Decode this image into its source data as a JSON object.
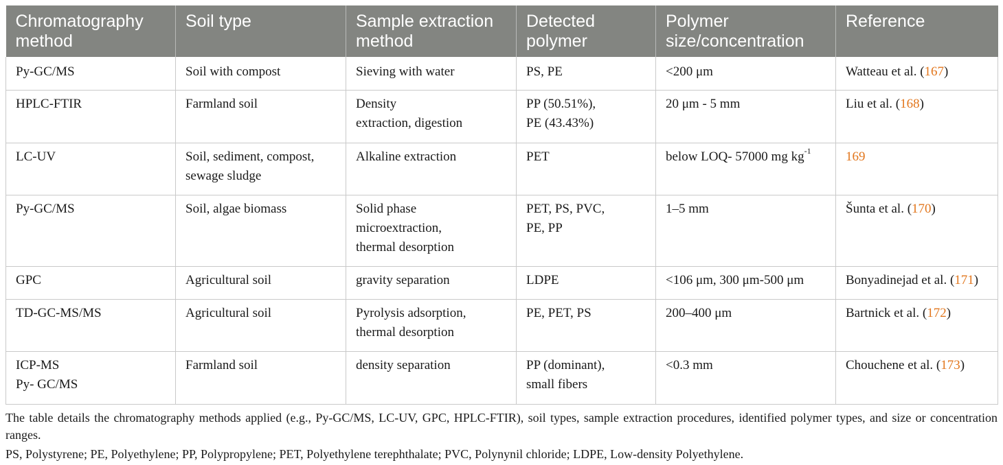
{
  "table": {
    "headers": [
      [
        "Chromatography",
        "method"
      ],
      [
        "Soil type"
      ],
      [
        "Sample extraction",
        "method"
      ],
      [
        "Detected",
        "polymer"
      ],
      [
        "Polymer",
        "size/concentration"
      ],
      [
        "Reference"
      ]
    ],
    "rows": [
      {
        "method": [
          "Py-GC/MS"
        ],
        "soil": [
          "Soil with compost"
        ],
        "extraction": [
          "Sieving with water"
        ],
        "polymer": [
          "PS, PE"
        ],
        "size": {
          "text": "<200 μm",
          "sup": ""
        },
        "reference": {
          "pre": "Watteau et al. (",
          "num": "167",
          "post": ")"
        }
      },
      {
        "method": [
          "HPLC-FTIR"
        ],
        "soil": [
          "Farmland soil"
        ],
        "extraction": [
          "Density",
          "extraction, digestion"
        ],
        "polymer": [
          "PP (50.51%),",
          "PE (43.43%)"
        ],
        "size": {
          "text": "20 μm - 5 mm",
          "sup": ""
        },
        "reference": {
          "pre": "Liu et al. (",
          "num": "168",
          "post": ")"
        }
      },
      {
        "method": [
          "LC-UV"
        ],
        "soil": [
          "Soil, sediment, compost,",
          "sewage sludge"
        ],
        "extraction": [
          "Alkaline extraction"
        ],
        "polymer": [
          "PET"
        ],
        "size": {
          "text": "below LOQ- 57000 mg kg",
          "sup": "-1"
        },
        "reference": {
          "pre": "",
          "num": "169",
          "post": ""
        }
      },
      {
        "method": [
          "Py-GC/MS"
        ],
        "soil": [
          "Soil, algae biomass"
        ],
        "extraction": [
          "Solid phase",
          "microextraction,",
          "thermal desorption"
        ],
        "polymer": [
          "PET, PS, PVC,",
          "PE, PP"
        ],
        "size": {
          "text": "1–5 mm",
          "sup": ""
        },
        "reference": {
          "pre": "Šunta et al. (",
          "num": "170",
          "post": ")"
        }
      },
      {
        "method": [
          "GPC"
        ],
        "soil": [
          "Agricultural soil"
        ],
        "extraction": [
          "gravity separation"
        ],
        "polymer": [
          "LDPE"
        ],
        "size": {
          "text": "<106 μm, 300 μm-500 μm",
          "sup": ""
        },
        "reference": {
          "pre": "Bonyadinejad et al. (",
          "num": "171",
          "post": ")"
        }
      },
      {
        "method": [
          "TD-GC-MS/MS"
        ],
        "soil": [
          "Agricultural soil"
        ],
        "extraction": [
          "Pyrolysis adsorption,",
          "thermal desorption"
        ],
        "polymer": [
          "PE, PET, PS"
        ],
        "size": {
          "text": "200–400 μm",
          "sup": ""
        },
        "reference": {
          "pre": "Bartnick et al. (",
          "num": "172",
          "post": ")"
        }
      },
      {
        "method": [
          "ICP-MS",
          "Py- GC/MS"
        ],
        "soil": [
          "Farmland soil"
        ],
        "extraction": [
          "density separation"
        ],
        "polymer": [
          "PP (dominant),",
          "small fibers"
        ],
        "size": {
          "text": "<0.3 mm",
          "sup": ""
        },
        "reference": {
          "pre": "Chouchene et al. (",
          "num": "173",
          "post": ")"
        }
      }
    ]
  },
  "footnote": {
    "description": "The table details the chromatography methods applied (e.g., Py-GC/MS, LC-UV, GPC, HPLC-FTIR), soil types, sample extraction procedures, identified polymer types, and size or concentration ranges.",
    "abbreviations": "PS, Polystyrene; PE, Polyethylene; PP, Polypropylene; PET, Polyethylene terephthalate; PVC, Polynynil chloride; LDPE, Low-density Polyethylene."
  },
  "colors": {
    "header_bg": "#838581",
    "header_text": "#ffffff",
    "link": "#e2761c",
    "grid": "#c9c9c9"
  }
}
